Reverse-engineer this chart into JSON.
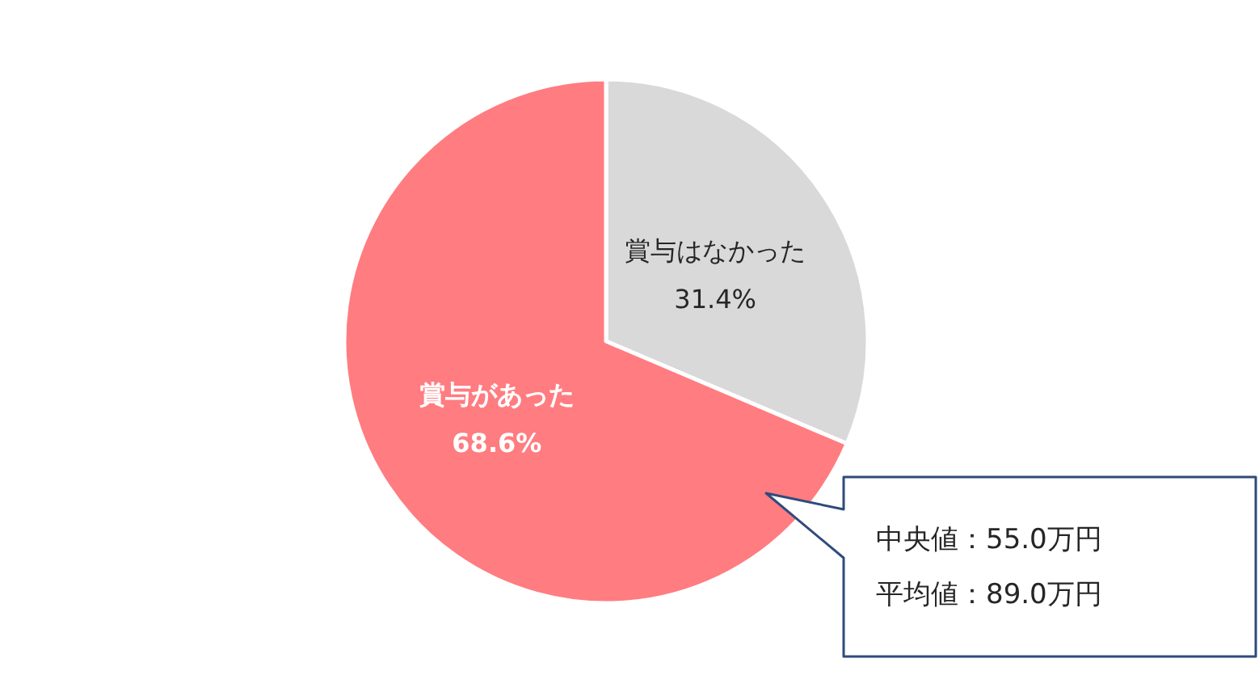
{
  "chart_data": {
    "type": "pie",
    "categories": [
      "賞与はなかった",
      "賞与があった"
    ],
    "values": [
      31.4,
      68.6
    ],
    "colors": [
      "#d9d9d9",
      "#ff7c80"
    ],
    "value_labels": [
      "31.4%",
      "68.6%"
    ],
    "annotations": [
      "中央値：55.0万円",
      "平均値：89.0万円"
    ]
  }
}
